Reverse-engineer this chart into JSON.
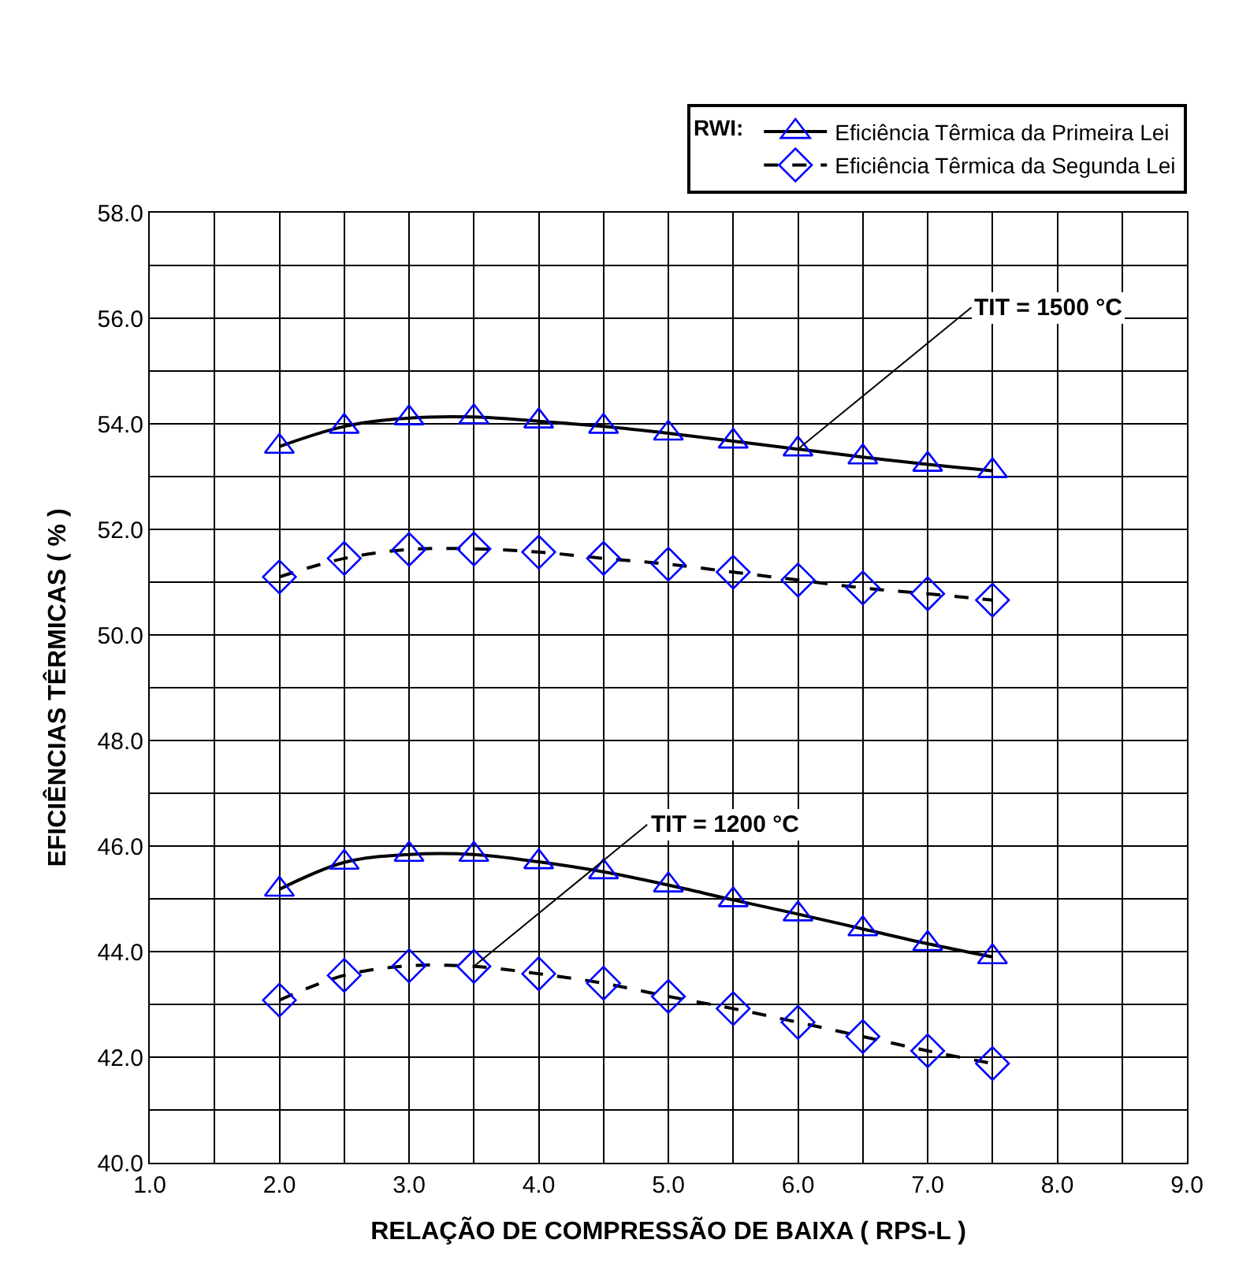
{
  "chart_data": {
    "type": "line",
    "xlabel": "RELAÇÃO DE COMPRESSÃO DE BAIXA ( RPS-L )",
    "ylabel": "EFICIÊNCIAS TÊRMICAS ( % )",
    "legend_title": "RWI:",
    "x": [
      2.0,
      2.5,
      3.0,
      3.5,
      4.0,
      4.5,
      5.0,
      5.5,
      6.0,
      6.5,
      7.0,
      7.5
    ],
    "series": [
      {
        "name": "Eficiência Têrmica da Primeira Lei",
        "color": "#0000ff",
        "marker": "triangle",
        "line_style": "solid",
        "values": [
          53.57,
          53.95,
          54.11,
          54.13,
          54.05,
          53.95,
          53.82,
          53.67,
          53.52,
          53.37,
          53.23,
          53.11
        ]
      },
      {
        "name": "Eficiência Têrmica da Segunda Lei",
        "color": "#0000ff",
        "marker": "diamond",
        "line_style": "dashed",
        "values": [
          51.1,
          51.45,
          51.62,
          51.63,
          51.57,
          51.45,
          51.34,
          51.19,
          51.04,
          50.89,
          50.78,
          50.66
        ]
      },
      {
        "color": "#0000ff",
        "marker": "triangle",
        "line_style": "solid",
        "values": [
          45.18,
          45.69,
          45.84,
          45.84,
          45.7,
          45.51,
          45.26,
          44.98,
          44.71,
          44.43,
          44.15,
          43.9
        ]
      },
      {
        "color": "#0000ff",
        "marker": "diamond",
        "line_style": "dashed",
        "values": [
          43.08,
          43.55,
          43.73,
          43.72,
          43.58,
          43.4,
          43.15,
          42.92,
          42.66,
          42.39,
          42.12,
          41.88
        ]
      }
    ],
    "annotations": [
      {
        "text": "TIT = 1500 °C",
        "x": 6.0,
        "y": 53.52
      },
      {
        "text": "TIT = 1200 °C",
        "x": 3.5,
        "y": 43.72
      }
    ],
    "xlim": [
      1,
      9
    ],
    "xticks": [
      {
        "value": 1,
        "label": "1.0"
      },
      {
        "value": 1.5,
        "label": null
      },
      {
        "value": 2,
        "label": "2.0"
      },
      {
        "value": 2.5,
        "label": null
      },
      {
        "value": 3,
        "label": "3.0"
      },
      {
        "value": 3.5,
        "label": null
      },
      {
        "value": 4,
        "label": "4.0"
      },
      {
        "value": 4.5,
        "label": null
      },
      {
        "value": 5,
        "label": "5.0"
      },
      {
        "value": 5.5,
        "label": null
      },
      {
        "value": 6,
        "label": "6.0"
      },
      {
        "value": 6.5,
        "label": null
      },
      {
        "value": 7,
        "label": "7.0"
      },
      {
        "value": 7.5,
        "label": null
      },
      {
        "value": 8,
        "label": "8.0"
      },
      {
        "value": 8.5,
        "label": null
      },
      {
        "value": 9,
        "label": "9.0"
      }
    ],
    "ylim": [
      40,
      58
    ],
    "yticks": [
      {
        "value": 40,
        "label": "40.0"
      },
      {
        "value": 41,
        "label": null
      },
      {
        "value": 42,
        "label": "42.0"
      },
      {
        "value": 43,
        "label": null
      },
      {
        "value": 44,
        "label": "44.0"
      },
      {
        "value": 45,
        "label": null
      },
      {
        "value": 46,
        "label": "46.0"
      },
      {
        "value": 47,
        "label": null
      },
      {
        "value": 48,
        "label": "48.0"
      },
      {
        "value": 49,
        "label": null
      },
      {
        "value": 50,
        "label": "50.0"
      },
      {
        "value": 51,
        "label": null
      },
      {
        "value": 52,
        "label": "52.0"
      },
      {
        "value": 53,
        "label": null
      },
      {
        "value": 54,
        "label": "54.0"
      },
      {
        "value": 55,
        "label": null
      },
      {
        "value": 56,
        "label": "56.0"
      },
      {
        "value": 57,
        "label": null
      },
      {
        "value": 58,
        "label": "58.0"
      }
    ],
    "grid": true,
    "legend": "top right"
  }
}
